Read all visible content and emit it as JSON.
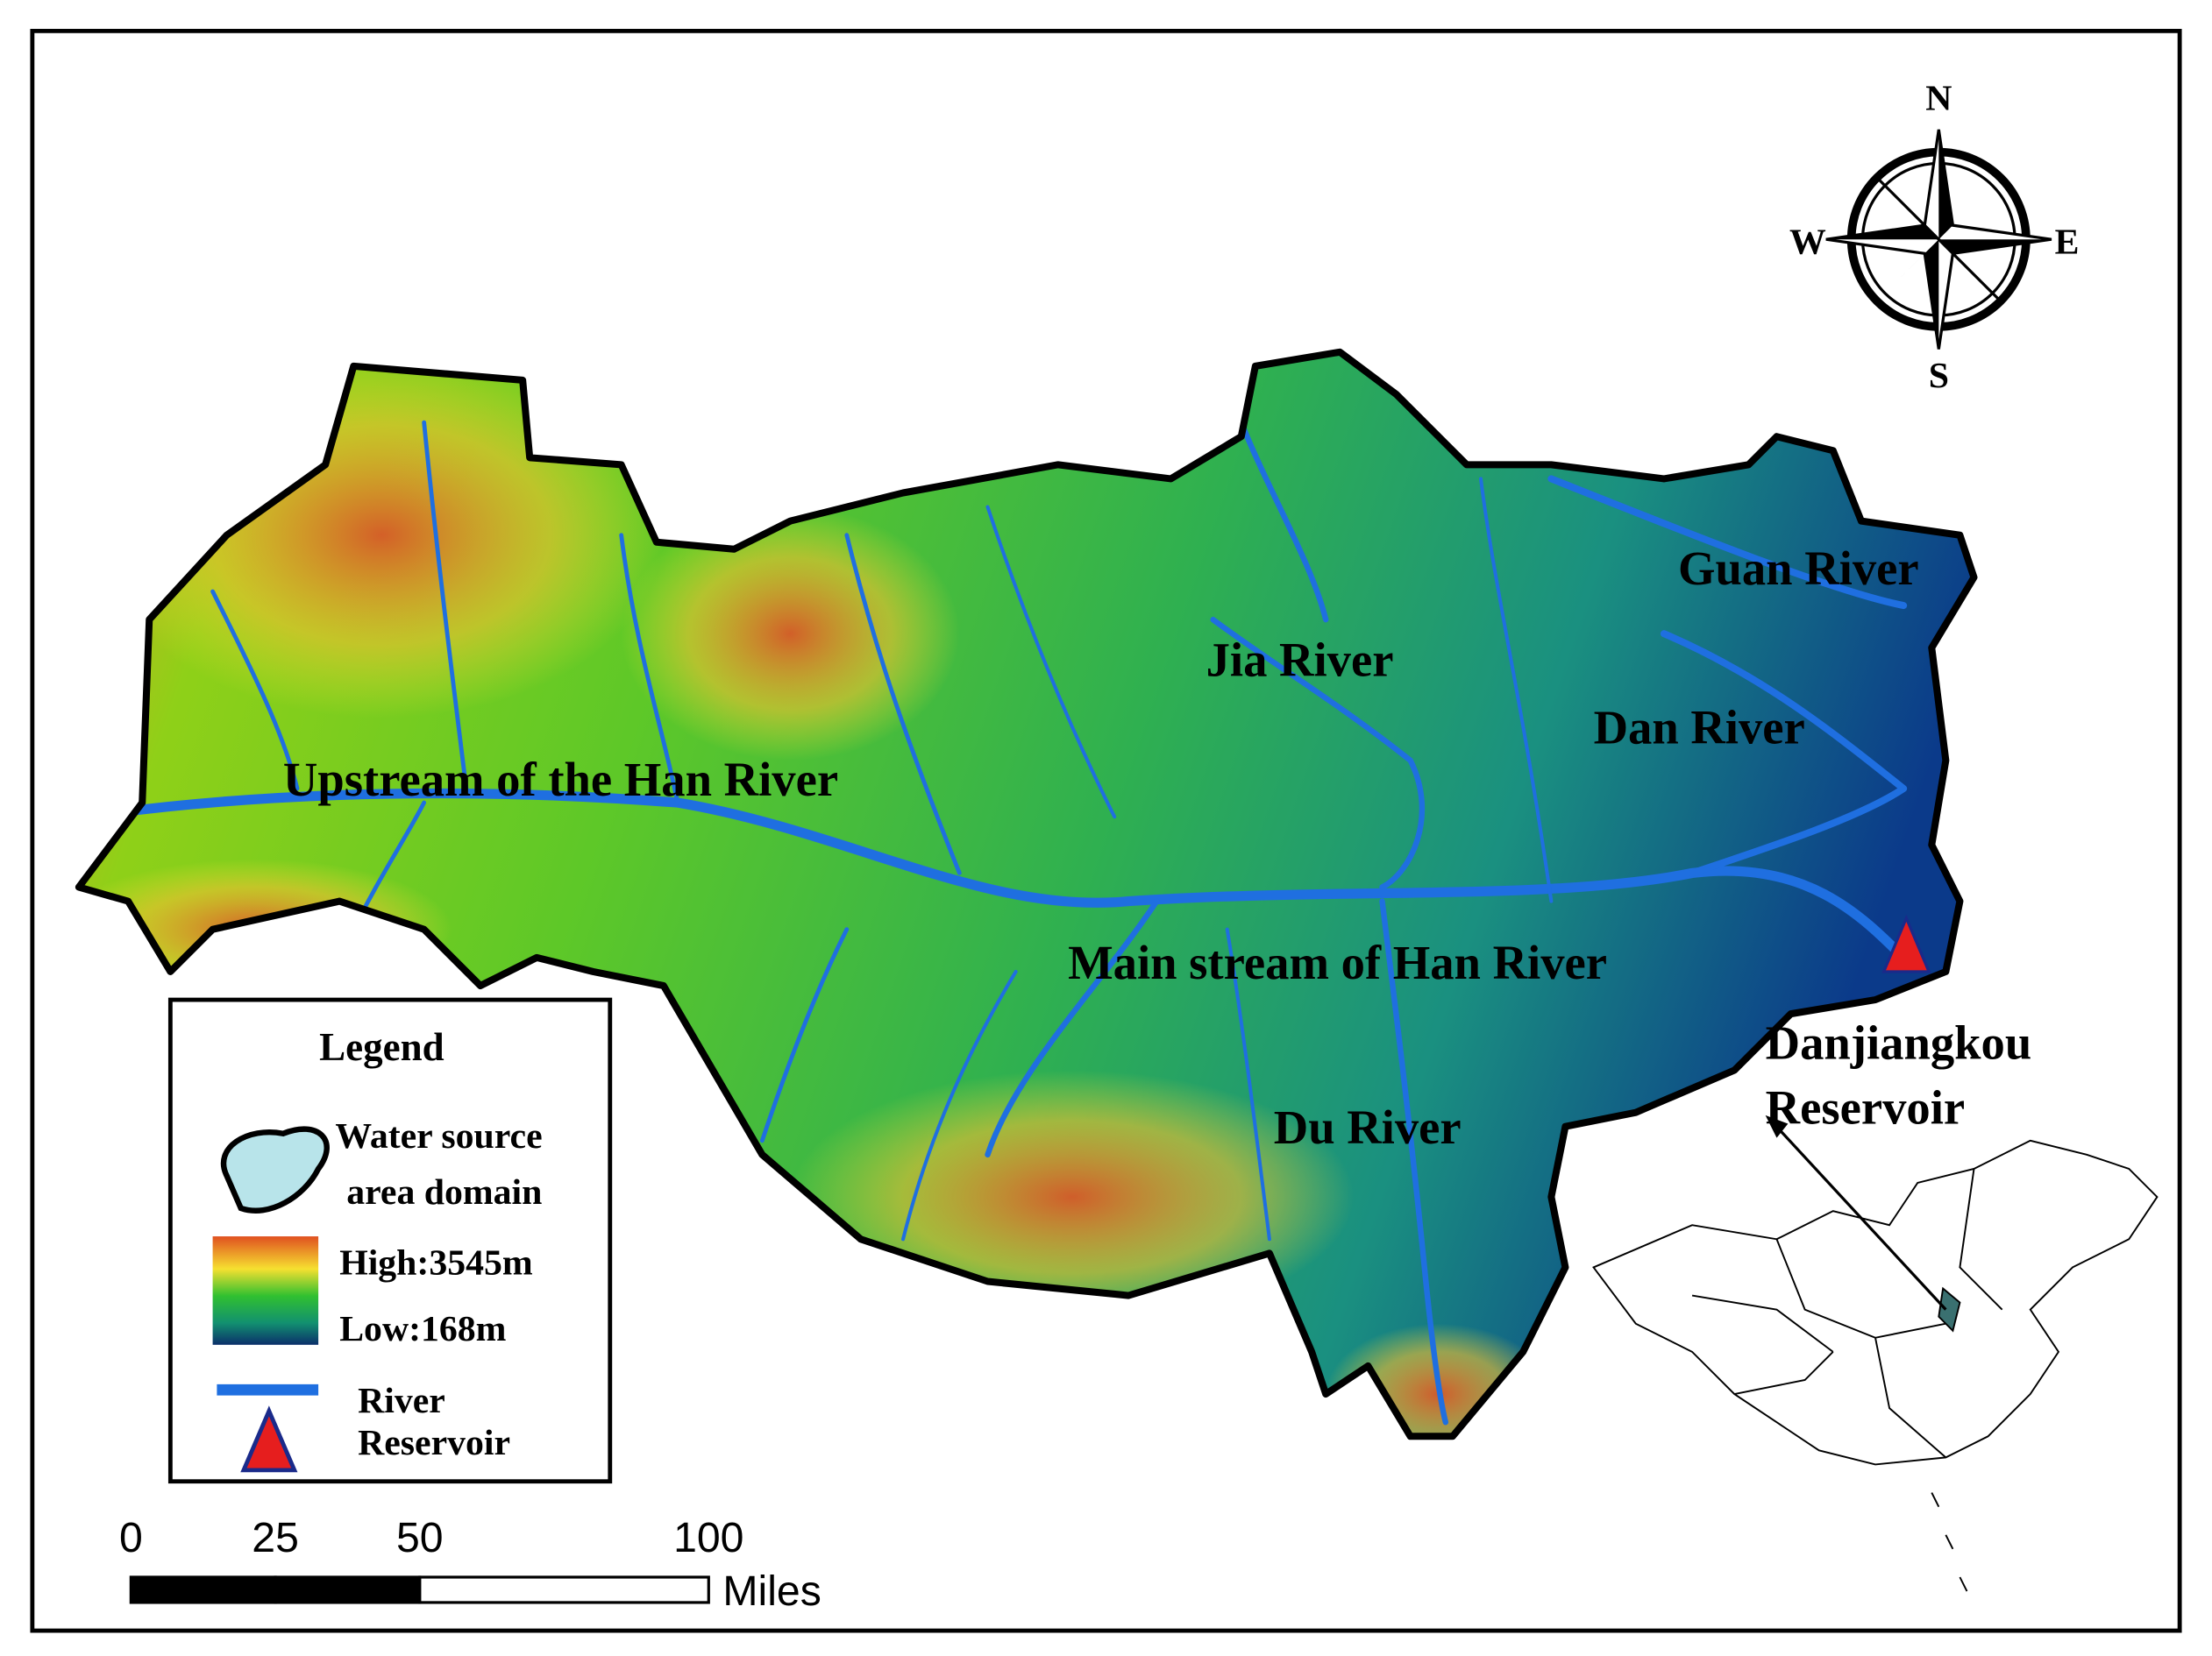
{
  "compass": {
    "north": "N",
    "south": "S",
    "east": "E",
    "west": "W"
  },
  "map_labels": [
    "Guan River",
    "Jia River",
    "Dan River",
    "Upstream of the Han River",
    "Main stream of Han River",
    "Du River"
  ],
  "reservoir_label": [
    "Danjiangkou",
    "Reservoir"
  ],
  "legend": {
    "title": "Legend",
    "water_source": [
      "Water  source",
      "area domain"
    ],
    "elevation_high": "High:3545m",
    "elevation_low": "Low:168m",
    "river": "River",
    "reservoir": "Reservoir"
  },
  "scale_bar": {
    "ticks": [
      0,
      25,
      50,
      100
    ],
    "unit": "Miles"
  }
}
